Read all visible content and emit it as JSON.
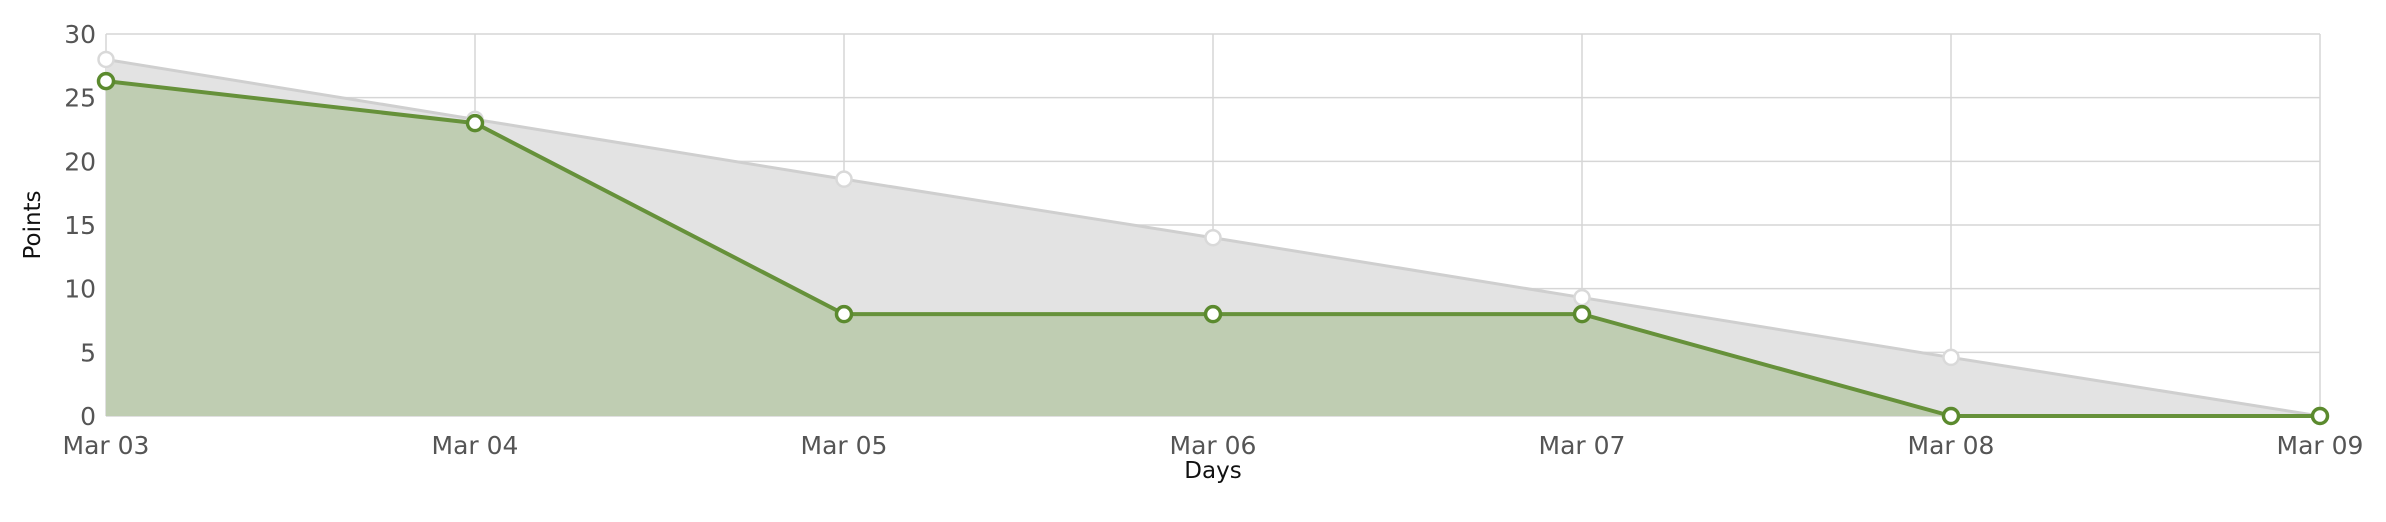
{
  "chart_data": {
    "type": "area",
    "xlabel": "Days",
    "ylabel": "Points",
    "categories": [
      "Mar 03",
      "Mar 04",
      "Mar 05",
      "Mar 06",
      "Mar 07",
      "Mar 08",
      "Mar 09"
    ],
    "ylim": [
      0,
      30
    ],
    "yticks": [
      0,
      5,
      10,
      15,
      20,
      25,
      30
    ],
    "grid": true,
    "series": [
      {
        "values": [
          28,
          23.3,
          18.6,
          14,
          9.3,
          4.6,
          0
        ],
        "color": "#cfcfcf",
        "fill": "#e3e3e3",
        "marker_fill": "#ffffff",
        "marker_stroke": "#d9d9d9"
      },
      {
        "values": [
          26.3,
          23,
          8,
          8,
          8,
          0,
          0
        ],
        "color": "#66913a",
        "fill": "#bfcdb2",
        "marker_fill": "#ffffff",
        "marker_stroke": "#5b8a2e"
      }
    ]
  }
}
